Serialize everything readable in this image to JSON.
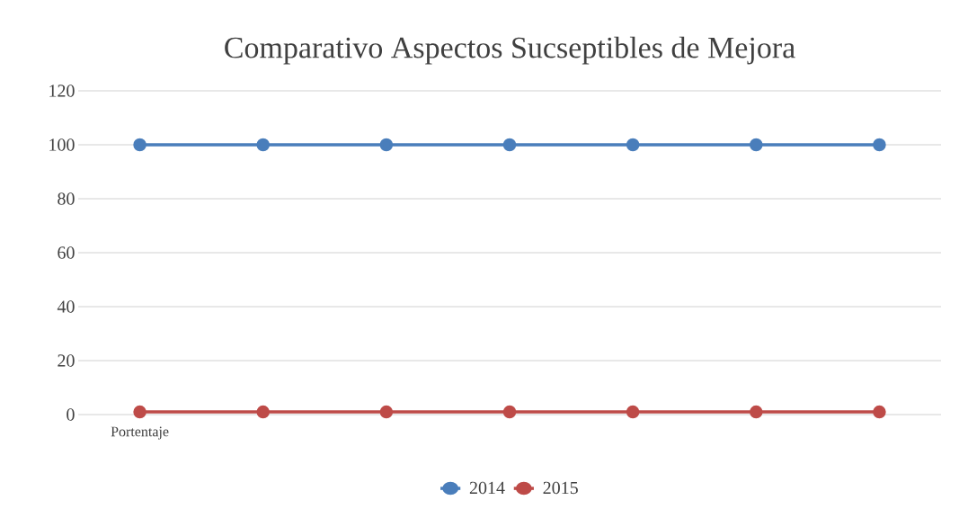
{
  "chart_data": {
    "type": "line",
    "title": "Comparativo Aspectos Sucseptibles de Mejora",
    "categories": [
      "Portentaje",
      null,
      null,
      null,
      null,
      null,
      null
    ],
    "series": [
      {
        "name": "2014",
        "color": "#4a7ebb",
        "values": [
          100,
          100,
          100,
          100,
          100,
          100,
          100
        ]
      },
      {
        "name": "2015",
        "color": "#be4b48",
        "values": [
          1,
          1,
          1,
          1,
          1,
          1,
          1
        ]
      }
    ],
    "ylim": [
      0,
      120
    ],
    "yticks": [
      0,
      20,
      40,
      60,
      80,
      100,
      120
    ],
    "grid": "y",
    "legend": "bottom",
    "marker": "circle",
    "line_style": "solid"
  }
}
